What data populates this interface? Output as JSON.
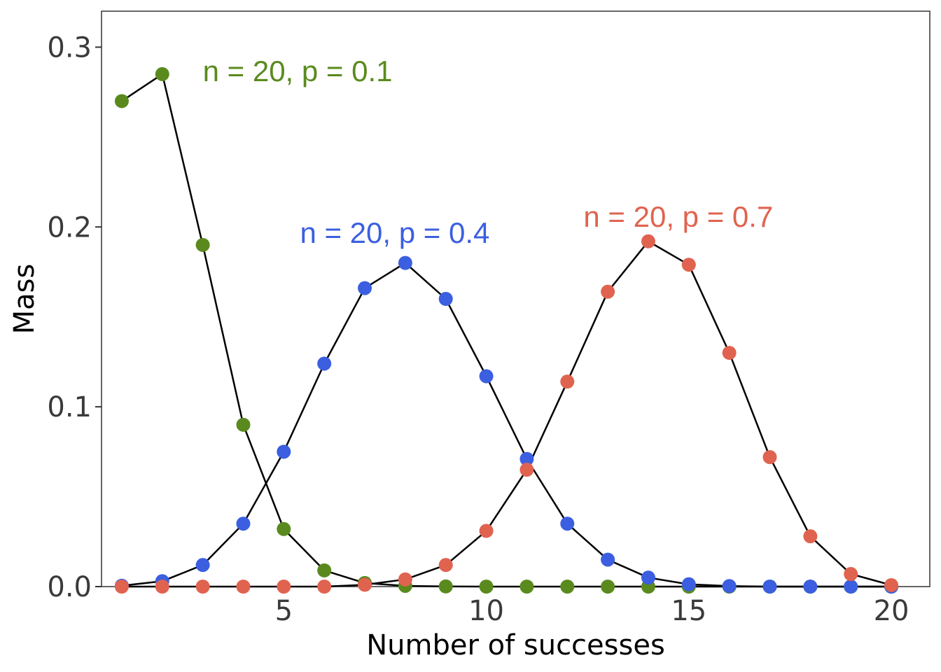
{
  "chart_data": {
    "type": "line",
    "xlabel": "Number of successes",
    "ylabel": "Mass",
    "xlim": [
      0.5,
      20.95
    ],
    "ylim": [
      0,
      0.32
    ],
    "xticks": [
      5,
      10,
      15,
      20
    ],
    "yticks": [
      0.0,
      0.1,
      0.2,
      0.3
    ],
    "ytick_labels": [
      "0.0",
      "0.1",
      "0.2",
      "0.3"
    ],
    "grid": false,
    "line_color": "#000000",
    "x": [
      1,
      2,
      3,
      4,
      5,
      6,
      7,
      8,
      9,
      10,
      11,
      12,
      13,
      14,
      15,
      16,
      17,
      18,
      19,
      20
    ],
    "series": [
      {
        "label": "n = 20, p = 0.1",
        "color": "#5a8a1e",
        "label_at": [
          3,
          0.287
        ],
        "values": [
          0.27,
          0.285,
          0.19,
          0.09,
          0.032,
          0.009,
          0.002,
          0.0004,
          0.0001,
          0.0,
          0.0,
          0.0,
          0.0,
          0.0,
          0.0,
          0.0,
          0.0,
          0.0,
          0.0,
          0.0
        ]
      },
      {
        "label": "n = 20, p = 0.4",
        "color": "#3b5fe0",
        "label_at": [
          5.4,
          0.197
        ],
        "values": [
          0.0005,
          0.003,
          0.012,
          0.035,
          0.075,
          0.124,
          0.166,
          0.18,
          0.16,
          0.117,
          0.071,
          0.035,
          0.015,
          0.005,
          0.0013,
          0.0003,
          0.0,
          0.0,
          0.0,
          0.0
        ]
      },
      {
        "label": "n = 20, p = 0.7",
        "color": "#e0634f",
        "label_at": [
          12.4,
          0.206
        ],
        "values": [
          0.0,
          0.0,
          0.0,
          0.0,
          0.0,
          0.0,
          0.001,
          0.004,
          0.012,
          0.031,
          0.065,
          0.114,
          0.164,
          0.192,
          0.179,
          0.13,
          0.072,
          0.028,
          0.007,
          0.0008
        ]
      }
    ]
  }
}
